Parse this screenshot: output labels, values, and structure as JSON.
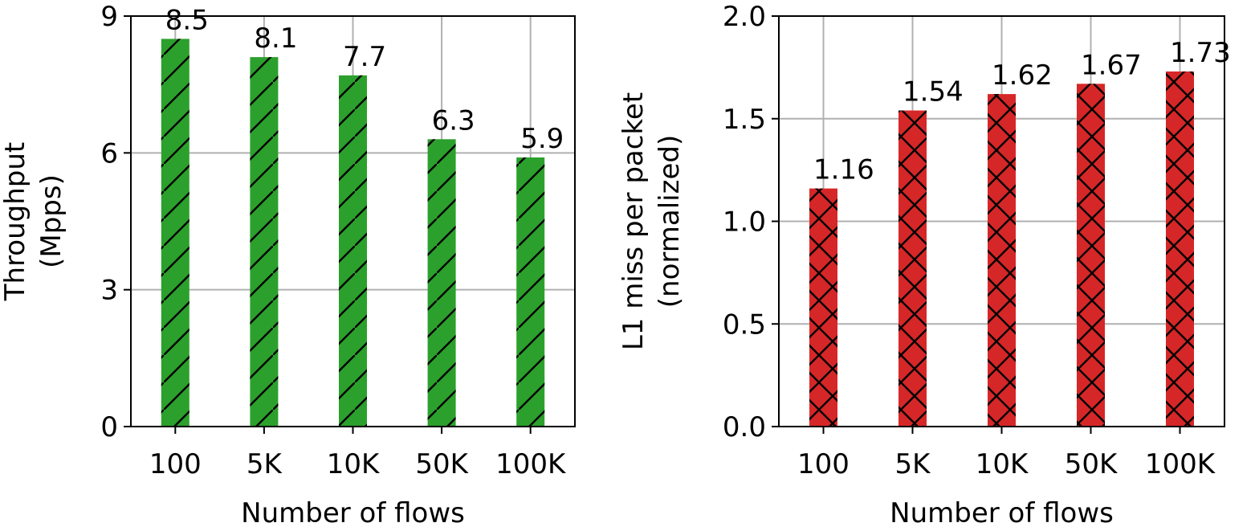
{
  "chart_data": [
    {
      "type": "bar",
      "categories": [
        "100",
        "5K",
        "10K",
        "50K",
        "100K"
      ],
      "values": [
        8.5,
        8.1,
        7.7,
        6.3,
        5.9
      ],
      "data_labels": [
        "8.5",
        "8.1",
        "7.7",
        "6.3",
        "5.9"
      ],
      "xlabel": "Number of flows",
      "ylabel": [
        "Throughput",
        "(Mpps)"
      ],
      "ylim": [
        0,
        9
      ],
      "yticks": [
        0,
        3,
        6,
        9
      ],
      "ytick_labels": [
        "0",
        "3",
        "6",
        "9"
      ],
      "grid": true,
      "bar_color": "#2ca02c",
      "hatch": "diagonal"
    },
    {
      "type": "bar",
      "categories": [
        "100",
        "5K",
        "10K",
        "50K",
        "100K"
      ],
      "values": [
        1.16,
        1.54,
        1.62,
        1.67,
        1.73
      ],
      "data_labels": [
        "1.16",
        "1.54",
        "1.62",
        "1.67",
        "1.73"
      ],
      "xlabel": "Number of flows",
      "ylabel": [
        "L1 miss per packet",
        "(normalized)"
      ],
      "ylim": [
        0,
        2.0
      ],
      "yticks": [
        0,
        0.5,
        1.0,
        1.5,
        2.0
      ],
      "ytick_labels": [
        "0.0",
        "0.5",
        "1.0",
        "1.5",
        "2.0"
      ],
      "grid": true,
      "bar_color": "#d62728",
      "hatch": "cross"
    }
  ]
}
